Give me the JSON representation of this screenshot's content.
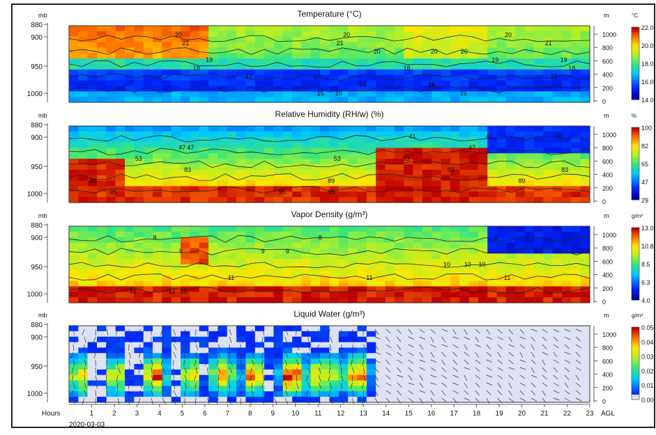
{
  "chart_data": [
    {
      "type": "heatmap",
      "title": "Temperature (°C)",
      "left_unit": "mb",
      "right_unit": "m",
      "colorbar_unit": "°C",
      "colorbar_ticks": [
        "22.0",
        "20.0",
        "18.0",
        "16.0",
        "14.0"
      ],
      "colorbar_range": [
        14.0,
        22.0
      ],
      "pressure_ticks": [
        "880",
        "900",
        "950",
        "1000"
      ],
      "height_ticks": [
        "1000",
        "800",
        "600",
        "400",
        "200",
        "0"
      ],
      "contour_labels": [
        "20",
        "21",
        "20",
        "19",
        "18",
        "17",
        "16",
        "15"
      ]
    },
    {
      "type": "heatmap",
      "title": "Relative Humidity (RH/w) (%)",
      "left_unit": "mb",
      "right_unit": "m",
      "colorbar_unit": "%",
      "colorbar_ticks": [
        "100",
        "82",
        "65",
        "47",
        "29"
      ],
      "colorbar_range": [
        29,
        100
      ],
      "pressure_ticks": [
        "880",
        "900",
        "950",
        "1000"
      ],
      "height_ticks": [
        "1000",
        "800",
        "600",
        "400",
        "200",
        "0"
      ],
      "contour_labels": [
        "41",
        "47",
        "53",
        "83",
        "89",
        "95"
      ]
    },
    {
      "type": "heatmap",
      "title": "Vapor Density (g/m³)",
      "left_unit": "mb",
      "right_unit": "m",
      "colorbar_unit": "g/m³",
      "colorbar_ticks": [
        "13.0",
        "10.8",
        "8.5",
        "6.3",
        "4.0"
      ],
      "colorbar_range": [
        4.0,
        13.0
      ],
      "pressure_ticks": [
        "880",
        "900",
        "950",
        "1000"
      ],
      "height_ticks": [
        "1000",
        "800",
        "600",
        "400",
        "200",
        "0"
      ],
      "contour_labels": [
        "8",
        "9",
        "10",
        "11",
        "12"
      ]
    },
    {
      "type": "heatmap",
      "title": "Liquid Water (g/m³)",
      "left_unit": "mb",
      "right_unit": "m",
      "colorbar_unit": "g/m³",
      "colorbar_ticks": [
        "0.05",
        "0.04",
        "0.03",
        "0.02",
        "0.01",
        "0.00"
      ],
      "colorbar_range": [
        0.0,
        0.05
      ],
      "pressure_ticks": [
        "880",
        "900",
        "950",
        "1000"
      ],
      "height_ticks": [
        "1000",
        "800",
        "600",
        "400",
        "200",
        "0"
      ],
      "x_label": "Hours",
      "x_ticks": [
        "1",
        "2",
        "3",
        "4",
        "5",
        "6",
        "7",
        "8",
        "9",
        "10",
        "11",
        "12",
        "13",
        "14",
        "15",
        "16",
        "17",
        "18",
        "19",
        "20",
        "21",
        "22",
        "23"
      ],
      "date": "2020-03-03",
      "right_axis_label": "AGL",
      "x_range": [
        0,
        23
      ]
    }
  ]
}
